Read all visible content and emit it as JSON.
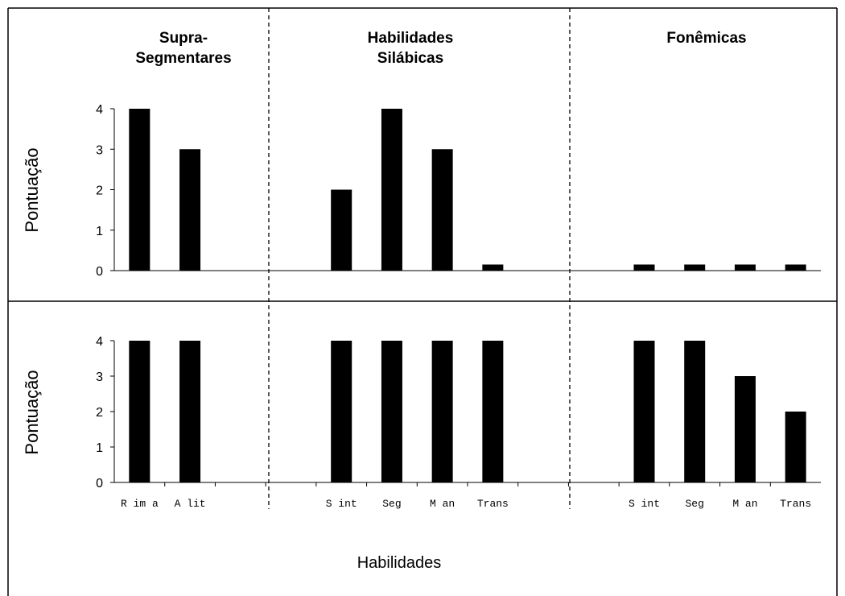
{
  "chart_data": {
    "type": "bar",
    "xlabel": "Habilidades",
    "sections": [
      {
        "title_lines": [
          "Supra-",
          "Segmentares"
        ]
      },
      {
        "title_lines": [
          "Habilidades",
          "Silábicas"
        ]
      },
      {
        "title_lines": [
          "Fonêmicas"
        ]
      }
    ],
    "categories": [
      "Rima",
      "Alit",
      "",
      "",
      "Sint",
      "Seg",
      "Man",
      "Trans",
      "",
      "",
      "Sint",
      "Seg",
      "Man",
      "Trans"
    ],
    "x_tick_labels": [
      "R im a",
      "A lit",
      "",
      "",
      "S int",
      "Seg",
      "M an",
      "Trans",
      "",
      "",
      "S int",
      "Seg",
      "M an",
      "Trans"
    ],
    "yticks": [
      0,
      1,
      2,
      3,
      4
    ],
    "ylim": [
      0,
      4
    ],
    "grid": false,
    "bar_color": "#000000",
    "panels": [
      {
        "ylabel": "Pontuação",
        "values": [
          4,
          3,
          null,
          null,
          2,
          4,
          3,
          0.15,
          null,
          null,
          0.15,
          0.15,
          0.15,
          0.15
        ]
      },
      {
        "ylabel": "Pontuação",
        "values": [
          4,
          4,
          null,
          null,
          4,
          4,
          4,
          4,
          null,
          null,
          4,
          4,
          3,
          2
        ]
      }
    ]
  }
}
